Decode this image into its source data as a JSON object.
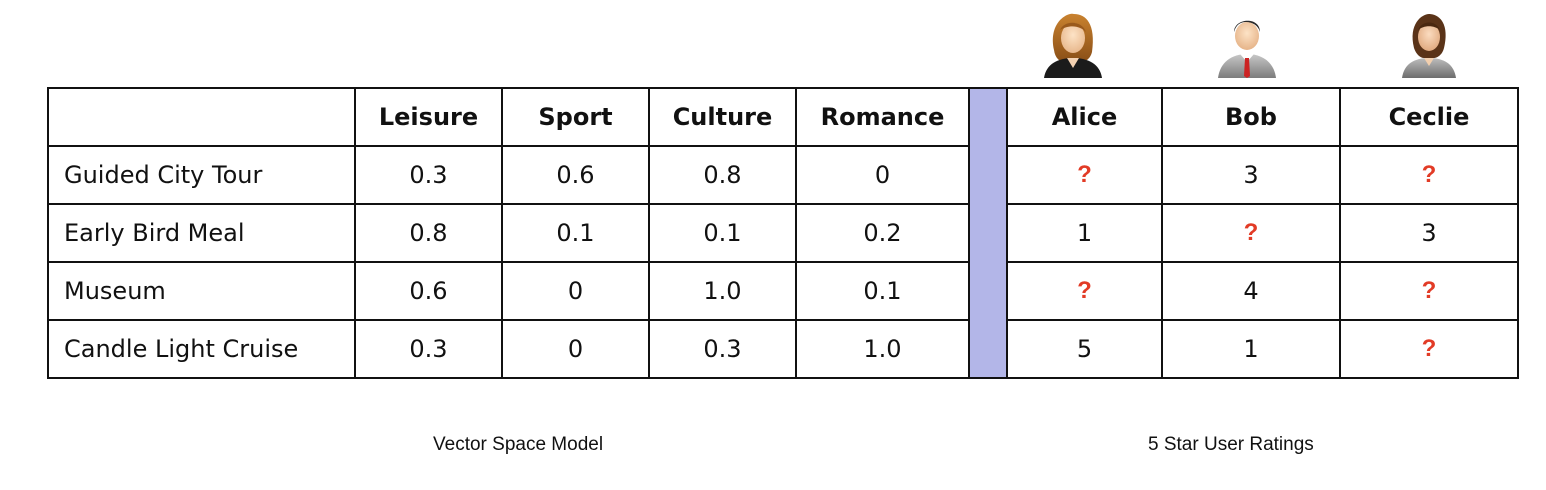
{
  "columns": {
    "features": [
      "Leisure",
      "Sport",
      "Culture",
      "Romance"
    ],
    "users": [
      "Alice",
      "Bob",
      "Ceclie"
    ]
  },
  "rows": [
    {
      "label": "Guided City Tour",
      "features": [
        "0.3",
        "0.6",
        "0.8",
        "0"
      ],
      "ratings": [
        "?",
        "3",
        "?"
      ]
    },
    {
      "label": "Early Bird Meal",
      "features": [
        "0.8",
        "0.1",
        "0.1",
        "0.2"
      ],
      "ratings": [
        "1",
        "?",
        "3"
      ]
    },
    {
      "label": "Museum",
      "features": [
        "0.6",
        "0",
        "1.0",
        "0.1"
      ],
      "ratings": [
        "?",
        "4",
        "?"
      ]
    },
    {
      "label": "Candle Light Cruise",
      "features": [
        "0.3",
        "0",
        "0.3",
        "1.0"
      ],
      "ratings": [
        "5",
        "1",
        "?"
      ]
    }
  ],
  "captions": {
    "left": "Vector Space Model",
    "right": "5 Star User Ratings"
  },
  "icons": {
    "alice": "female-user-icon",
    "bob": "male-user-icon",
    "ceclie": "female-user-icon"
  },
  "colors": {
    "unknown_rating": "#e23b26",
    "separator": "#b3b6e8"
  }
}
